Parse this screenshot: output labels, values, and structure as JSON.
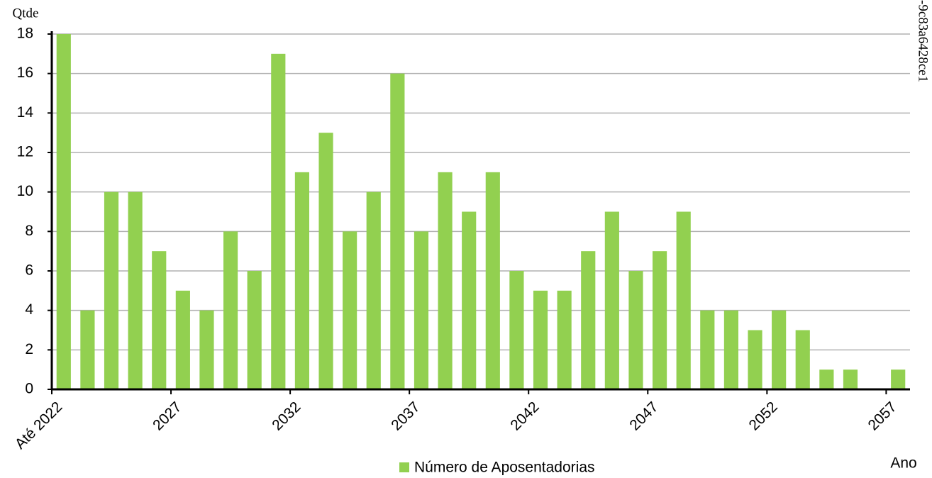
{
  "chart_data": {
    "type": "bar",
    "y_label": "Qtde",
    "x_label": "Ano",
    "annotation": "-9c83a6428ce1",
    "categories": [
      "Até 2022",
      null,
      null,
      null,
      null,
      "2027",
      null,
      null,
      null,
      null,
      "2032",
      null,
      null,
      null,
      null,
      "2037",
      null,
      null,
      null,
      null,
      "2042",
      null,
      null,
      null,
      null,
      "2047",
      null,
      null,
      null,
      null,
      "2052",
      null,
      null,
      null,
      null,
      "2057"
    ],
    "series": [
      {
        "name": "Número de Aposentadorias",
        "color": "#92d050",
        "values": [
          18,
          4,
          10,
          10,
          7,
          5,
          4,
          8,
          6,
          17,
          11,
          13,
          8,
          10,
          16,
          8,
          11,
          9,
          11,
          6,
          5,
          5,
          7,
          9,
          6,
          7,
          9,
          4,
          4,
          3,
          4,
          3,
          1,
          1,
          0,
          1
        ]
      }
    ],
    "ylim": [
      0,
      18
    ],
    "yticks": [
      0,
      2,
      4,
      6,
      8,
      10,
      12,
      14,
      16,
      18
    ],
    "grid": true
  }
}
